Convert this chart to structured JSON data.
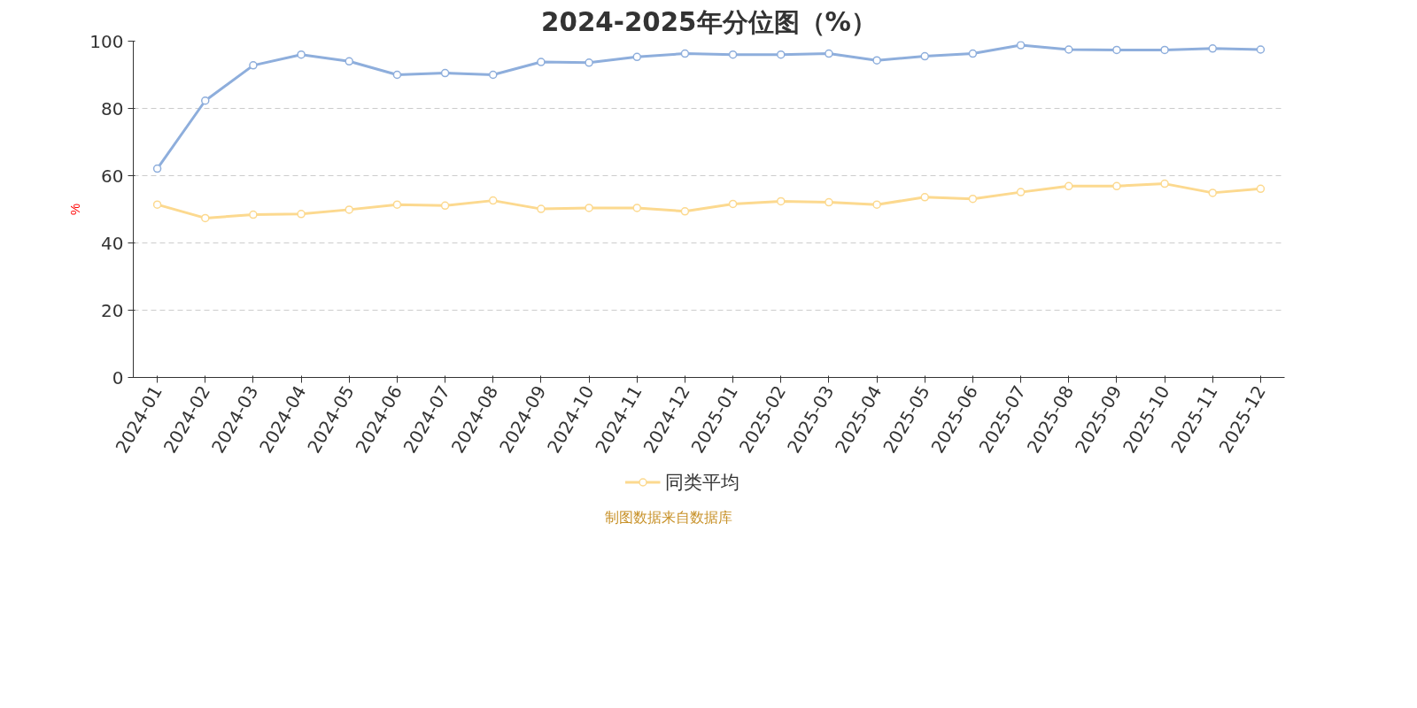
{
  "chart_data": {
    "type": "line",
    "title": "2024-2025年分位图（%）",
    "ylabel": "%",
    "categories": [
      "2024-01",
      "2024-02",
      "2024-03",
      "2024-04",
      "2024-05",
      "2024-06",
      "2024-07",
      "2024-08",
      "2024-09",
      "2024-10",
      "2024-11",
      "2024-12",
      "2025-01",
      "2025-02",
      "2025-03",
      "2025-04",
      "2025-05",
      "2025-06",
      "2025-07",
      "2025-08",
      "2025-09",
      "2025-10",
      "2025-11",
      "2025-12"
    ],
    "series": [
      {
        "color": "#8eaedc",
        "values": [
          62.1,
          82.3,
          92.8,
          96,
          94,
          90,
          90.5,
          90,
          93.8,
          93.6,
          95.3,
          96.3,
          96,
          96,
          96.3,
          94.3,
          95.5,
          96.3,
          98.8,
          97.5,
          97.4,
          97.4,
          97.8,
          97.5
        ]
      },
      {
        "name": "同类平均",
        "color": "#fcd98f",
        "values": [
          51.4,
          47.4,
          48.4,
          48.6,
          49.9,
          51.4,
          51.1,
          52.6,
          50.1,
          50.4,
          50.4,
          49.4,
          51.6,
          52.4,
          52.1,
          51.4,
          53.6,
          53.1,
          55.1,
          56.9,
          56.9,
          57.6,
          54.9,
          56.1
        ]
      }
    ],
    "ylim": [
      0,
      100
    ],
    "yticks": [
      0,
      20,
      40,
      60,
      80,
      100
    ],
    "grid": "y",
    "legend": "bottom",
    "marker": "circle",
    "line_style": "solid",
    "annotations": [
      "制图数据来自数据库"
    ]
  }
}
